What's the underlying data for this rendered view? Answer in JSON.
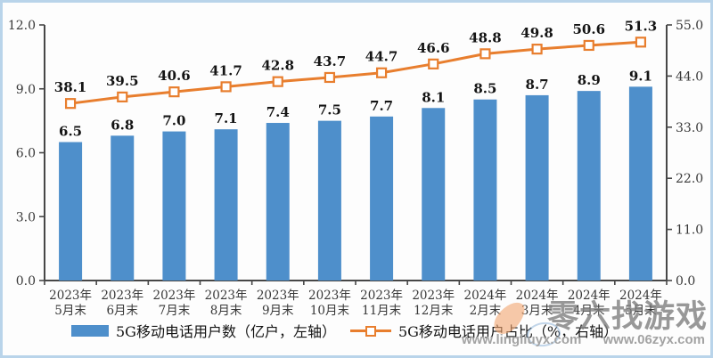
{
  "chart_data": {
    "type": "bar",
    "combo": "bar + line, dual axis",
    "categories": [
      {
        "l1": "2023年",
        "l2": "5月末"
      },
      {
        "l1": "2023年",
        "l2": "6月末"
      },
      {
        "l1": "2023年",
        "l2": "7月末"
      },
      {
        "l1": "2023年",
        "l2": "8月末"
      },
      {
        "l1": "2023年",
        "l2": "9月末"
      },
      {
        "l1": "2023年",
        "l2": "10月末"
      },
      {
        "l1": "2023年",
        "l2": "11月末"
      },
      {
        "l1": "2023年",
        "l2": "12月末"
      },
      {
        "l1": "2024年",
        "l2": "2月末"
      },
      {
        "l1": "2024年",
        "l2": "3月末"
      },
      {
        "l1": "2024年",
        "l2": "4月末"
      },
      {
        "l1": "2024年",
        "l2": "5月末"
      }
    ],
    "series": [
      {
        "name": "5G移动电话用户数（亿户，左轴）",
        "type": "bar",
        "axis": "left",
        "color": "#4E8FCB",
        "values": [
          6.5,
          6.8,
          7.0,
          7.1,
          7.4,
          7.5,
          7.7,
          8.1,
          8.5,
          8.7,
          8.9,
          9.1
        ],
        "labels": [
          "6.5",
          "6.8",
          "7.0",
          "7.1",
          "7.4",
          "7.5",
          "7.7",
          "8.1",
          "8.5",
          "8.7",
          "8.9",
          "9.1"
        ]
      },
      {
        "name": "5G移动电话用户占比（%，右轴）",
        "type": "line",
        "axis": "right",
        "color": "#E87E2E",
        "marker": "square",
        "values": [
          38.1,
          39.5,
          40.6,
          41.7,
          42.8,
          43.7,
          44.7,
          46.6,
          48.8,
          49.8,
          50.6,
          51.3
        ],
        "labels": [
          "38.1",
          "39.5",
          "40.6",
          "41.7",
          "42.8",
          "43.7",
          "44.7",
          "46.6",
          "48.8",
          "49.8",
          "50.6",
          "51.3"
        ]
      }
    ],
    "axes": {
      "left": {
        "min": 0,
        "max": 12,
        "ticks": [
          "0.0",
          "3.0",
          "6.0",
          "9.0",
          "12.0"
        ]
      },
      "right": {
        "min": 0,
        "max": 55,
        "ticks": [
          "0.0",
          "11.0",
          "22.0",
          "33.0",
          "44.0",
          "55.0"
        ]
      }
    },
    "grid": false,
    "legend_position": "bottom",
    "title": ""
  },
  "watermark": {
    "logo_text": "零六找游戏",
    "url_left": "www.lingliuyx.com",
    "url_right": "www.06zyx.com"
  }
}
